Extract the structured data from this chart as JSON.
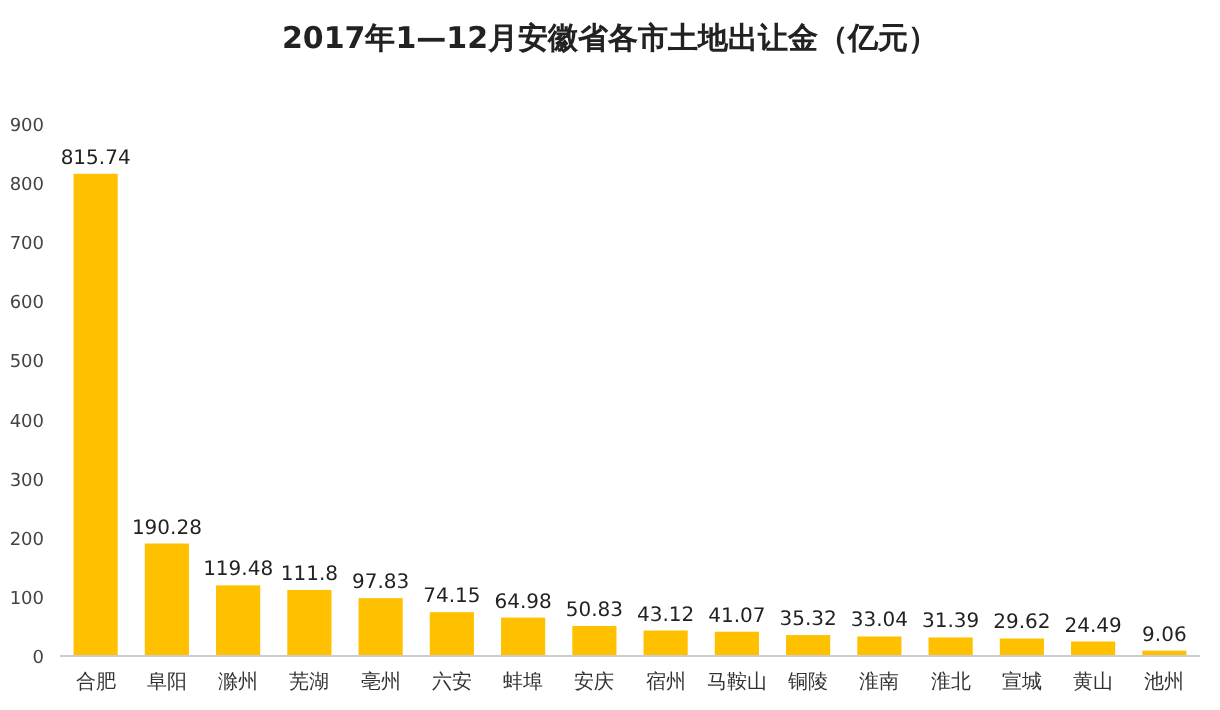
{
  "chart_data": {
    "type": "bar",
    "title": "2017年1—12月安徽省各市土地出让金（亿元）",
    "categories": [
      "合肥",
      "阜阳",
      "滁州",
      "芜湖",
      "亳州",
      "六安",
      "蚌埠",
      "安庆",
      "宿州",
      "马鞍山",
      "铜陵",
      "淮南",
      "淮北",
      "宣城",
      "黄山",
      "池州"
    ],
    "values": [
      815.74,
      190.28,
      119.48,
      111.8,
      97.83,
      74.15,
      64.98,
      50.83,
      43.12,
      41.07,
      35.32,
      33.04,
      31.39,
      29.62,
      24.49,
      9.06
    ],
    "color": "#ffc000",
    "ylim": [
      0,
      900
    ],
    "yticks": [
      0,
      100,
      200,
      300,
      400,
      500,
      600,
      700,
      800,
      900
    ],
    "data_labels": true
  }
}
